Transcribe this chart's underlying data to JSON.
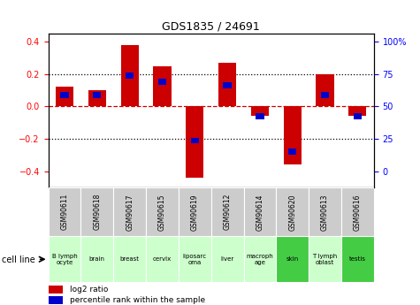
{
  "title": "GDS1835 / 24691",
  "samples": [
    "GSM90611",
    "GSM90618",
    "GSM90617",
    "GSM90615",
    "GSM90619",
    "GSM90612",
    "GSM90614",
    "GSM90620",
    "GSM90613",
    "GSM90616"
  ],
  "cell_lines": [
    "B lymph\nocyte",
    "brain",
    "breast",
    "cervix",
    "liposarc\noma",
    "liver",
    "macroph\nage",
    "skin",
    "T lymph\noblast",
    "testis"
  ],
  "cell_line_colors": [
    "#ccffcc",
    "#ccffcc",
    "#ccffcc",
    "#ccffcc",
    "#ccffcc",
    "#ccffcc",
    "#ccffcc",
    "#44cc44",
    "#ccffcc",
    "#44cc44"
  ],
  "log2_ratio": [
    0.12,
    0.1,
    0.38,
    0.25,
    -0.44,
    0.27,
    -0.06,
    -0.36,
    0.2,
    -0.06
  ],
  "percentile_rank": [
    0.07,
    0.07,
    0.19,
    0.15,
    -0.21,
    0.13,
    -0.06,
    -0.28,
    0.07,
    -0.06
  ],
  "blue_bar_height": 0.038,
  "ylim": [
    -0.5,
    0.45
  ],
  "yticks_left": [
    -0.4,
    -0.2,
    0.0,
    0.2,
    0.4
  ],
  "yticks_right": [
    "0",
    "25",
    "50",
    "75",
    "100%"
  ],
  "yticks_right_vals": [
    -0.4,
    -0.2,
    0.0,
    0.2,
    0.4
  ],
  "bar_color_red": "#cc0000",
  "bar_color_blue": "#0000cc",
  "zero_line_color": "#cc0000",
  "plot_bg_color": "#ffffff",
  "sample_label_bg": "#cccccc",
  "legend_color_red": "#cc0000",
  "legend_color_blue": "#0000cc",
  "bar_width": 0.55,
  "blue_bar_width": 0.25
}
